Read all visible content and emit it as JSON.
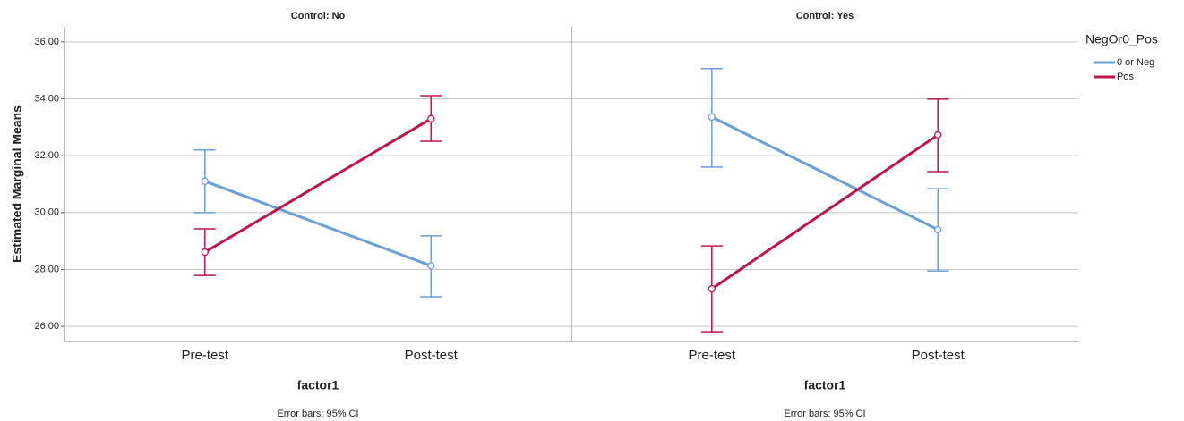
{
  "chart_data": [
    {
      "type": "line",
      "title": "Control: No",
      "x_label": "factor1",
      "y_label": "Estimated Marginal Means",
      "note": "Error bars: 95% CI",
      "categories": [
        "Pre-test",
        "Post-test"
      ],
      "series": [
        {
          "color": "#6a9fd8",
          "values": [
            31.1,
            28.13
          ],
          "lower": [
            30.0,
            27.04
          ],
          "upper": [
            32.2,
            29.18
          ]
        },
        {
          "color": "#c0144a",
          "values": [
            28.61,
            33.3
          ],
          "lower": [
            27.79,
            32.51
          ],
          "upper": [
            29.43,
            34.11
          ]
        }
      ],
      "ylim": [
        25.47,
        36.53
      ],
      "yticks": [
        {
          "value": 26,
          "label": "26.00"
        },
        {
          "value": 28,
          "label": "28.00"
        },
        {
          "value": 30,
          "label": "30.00"
        },
        {
          "value": 32,
          "label": "32.00"
        },
        {
          "value": 34,
          "label": "34.00"
        },
        {
          "value": 36,
          "label": "36.00"
        }
      ],
      "grid": true
    },
    {
      "type": "line",
      "title": "Control: Yes",
      "x_label": "factor1",
      "note": "Error bars: 95% CI",
      "categories": [
        "Pre-test",
        "Post-test"
      ],
      "legend_title": "NegOr0_Pos",
      "series": [
        {
          "name": "0 or Neg",
          "color": "#6a9fd8",
          "values": [
            33.36,
            29.4
          ],
          "lower": [
            31.6,
            27.95
          ],
          "upper": [
            35.06,
            30.84
          ]
        },
        {
          "name": "Pos",
          "color": "#c0144a",
          "values": [
            27.32,
            32.73
          ],
          "lower": [
            25.81,
            31.44
          ],
          "upper": [
            28.83,
            33.99
          ]
        }
      ],
      "ylim": [
        25.47,
        36.53
      ],
      "grid": true
    }
  ]
}
